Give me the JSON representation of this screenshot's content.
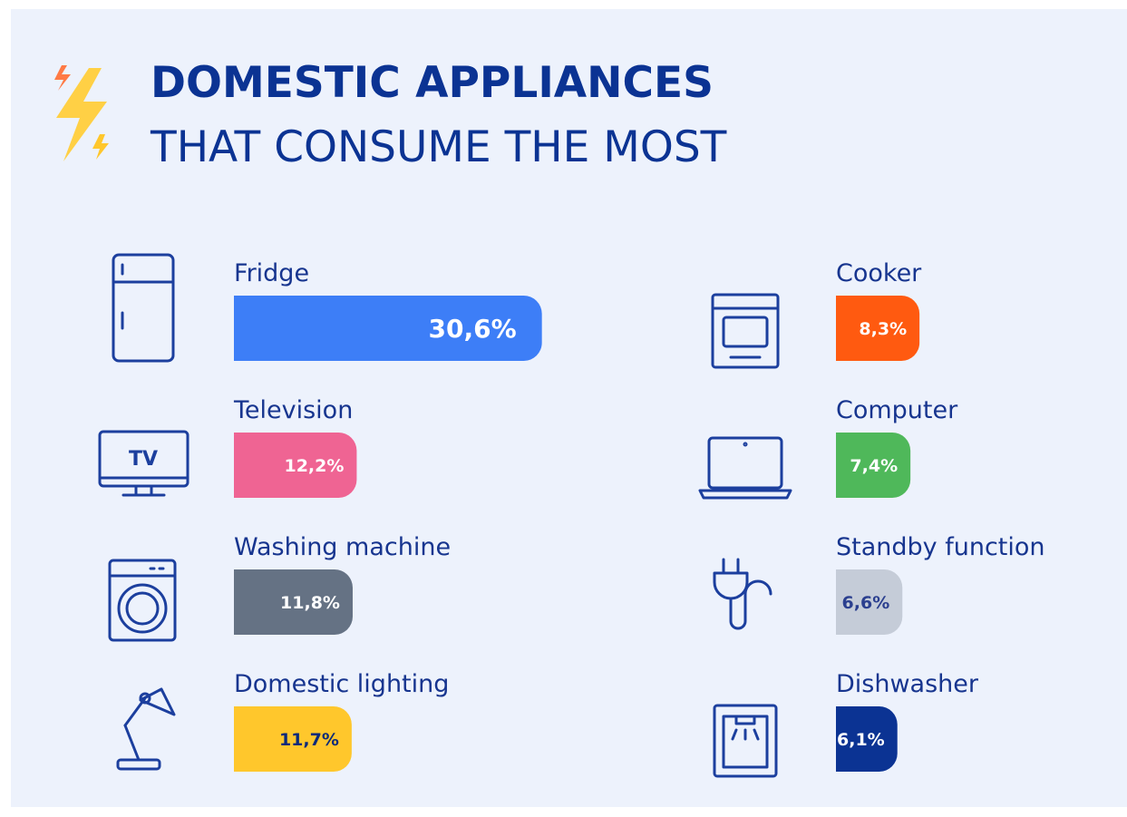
{
  "title": "DOMESTIC APPLIANCES",
  "subtitle": "THAT CONSUME THE MOST",
  "tv_icon_label": "TV",
  "chart_data": {
    "type": "bar",
    "categories": [
      "Fridge",
      "Television",
      "Washing machine",
      "Domestic lighting",
      "Cooker",
      "Computer",
      "Standby function",
      "Dishwasher"
    ],
    "values": [
      30.6,
      12.2,
      11.8,
      11.7,
      8.3,
      7.4,
      6.6,
      6.1
    ],
    "value_labels": [
      "30,6%",
      "12,2%",
      "11,8%",
      "11,7%",
      "8,3%",
      "7,4%",
      "6,6%",
      "6,1%"
    ],
    "colors": [
      "#3d7ef7",
      "#ef6493",
      "#657284",
      "#ffc72c",
      "#ff5a10",
      "#4fb85a",
      "#c5ccd8",
      "#0b3393"
    ],
    "label_colors": [
      "#ffffff",
      "#ffffff",
      "#ffffff",
      "#0b2a7a",
      "#ffffff",
      "#ffffff",
      "#2b3f8f",
      "#ffffff"
    ]
  }
}
